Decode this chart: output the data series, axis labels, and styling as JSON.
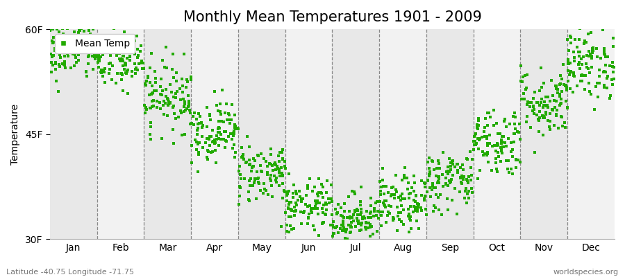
{
  "title": "Monthly Mean Temperatures 1901 - 2009",
  "ylabel": "Temperature",
  "subtitle_left": "Latitude -40.75 Longitude -71.75",
  "subtitle_right": "worldspecies.org",
  "ylim": [
    30,
    60
  ],
  "yticks": [
    30,
    45,
    60
  ],
  "ytick_labels": [
    "30F",
    "45F",
    "60F"
  ],
  "months": [
    "Jan",
    "Feb",
    "Mar",
    "Apr",
    "May",
    "Jun",
    "Jul",
    "Aug",
    "Sep",
    "Oct",
    "Nov",
    "Dec"
  ],
  "monthly_means": [
    57.0,
    55.5,
    50.5,
    45.5,
    39.5,
    34.5,
    33.0,
    35.0,
    38.5,
    44.0,
    49.5,
    55.0
  ],
  "monthly_std": [
    2.2,
    2.2,
    2.5,
    2.2,
    2.2,
    2.0,
    1.8,
    2.0,
    2.2,
    2.5,
    2.5,
    2.5
  ],
  "n_years": 109,
  "marker_color": "#22AA00",
  "marker_size": 3,
  "bg_color_odd": "#E8E8E8",
  "bg_color_even": "#F2F2F2",
  "plot_bg": "#FFFFFF",
  "grid_color": "#888888",
  "legend_label": "Mean Temp",
  "title_fontsize": 15,
  "label_fontsize": 10,
  "tick_fontsize": 10
}
